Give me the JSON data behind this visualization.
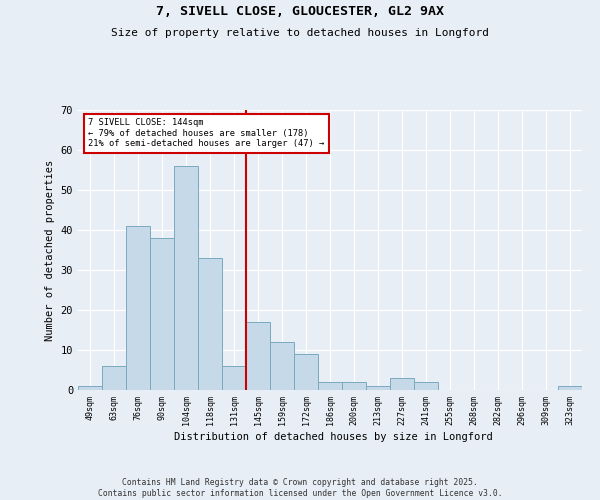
{
  "title1": "7, SIVELL CLOSE, GLOUCESTER, GL2 9AX",
  "title2": "Size of property relative to detached houses in Longford",
  "xlabel": "Distribution of detached houses by size in Longford",
  "ylabel": "Number of detached properties",
  "categories": [
    "49sqm",
    "63sqm",
    "76sqm",
    "90sqm",
    "104sqm",
    "118sqm",
    "131sqm",
    "145sqm",
    "159sqm",
    "172sqm",
    "186sqm",
    "200sqm",
    "213sqm",
    "227sqm",
    "241sqm",
    "255sqm",
    "268sqm",
    "282sqm",
    "296sqm",
    "309sqm",
    "323sqm"
  ],
  "values": [
    1,
    6,
    41,
    38,
    56,
    33,
    6,
    17,
    12,
    9,
    2,
    2,
    1,
    3,
    2,
    0,
    0,
    0,
    0,
    0,
    1
  ],
  "bar_color": "#c5d9e8",
  "bar_edge_color": "#7aaabf",
  "vline_x_index": 7,
  "annotation_line1": "7 SIVELL CLOSE: 144sqm",
  "annotation_line2": "← 79% of detached houses are smaller (178)",
  "annotation_line3": "21% of semi-detached houses are larger (47) →",
  "annotation_box_color": "#ffffff",
  "annotation_box_edge": "#cc0000",
  "vline_color": "#cc0000",
  "ylim": [
    0,
    70
  ],
  "yticks": [
    0,
    10,
    20,
    30,
    40,
    50,
    60,
    70
  ],
  "bg_color": "#e8eef5",
  "footer1": "Contains HM Land Registry data © Crown copyright and database right 2025.",
  "footer2": "Contains public sector information licensed under the Open Government Licence v3.0."
}
